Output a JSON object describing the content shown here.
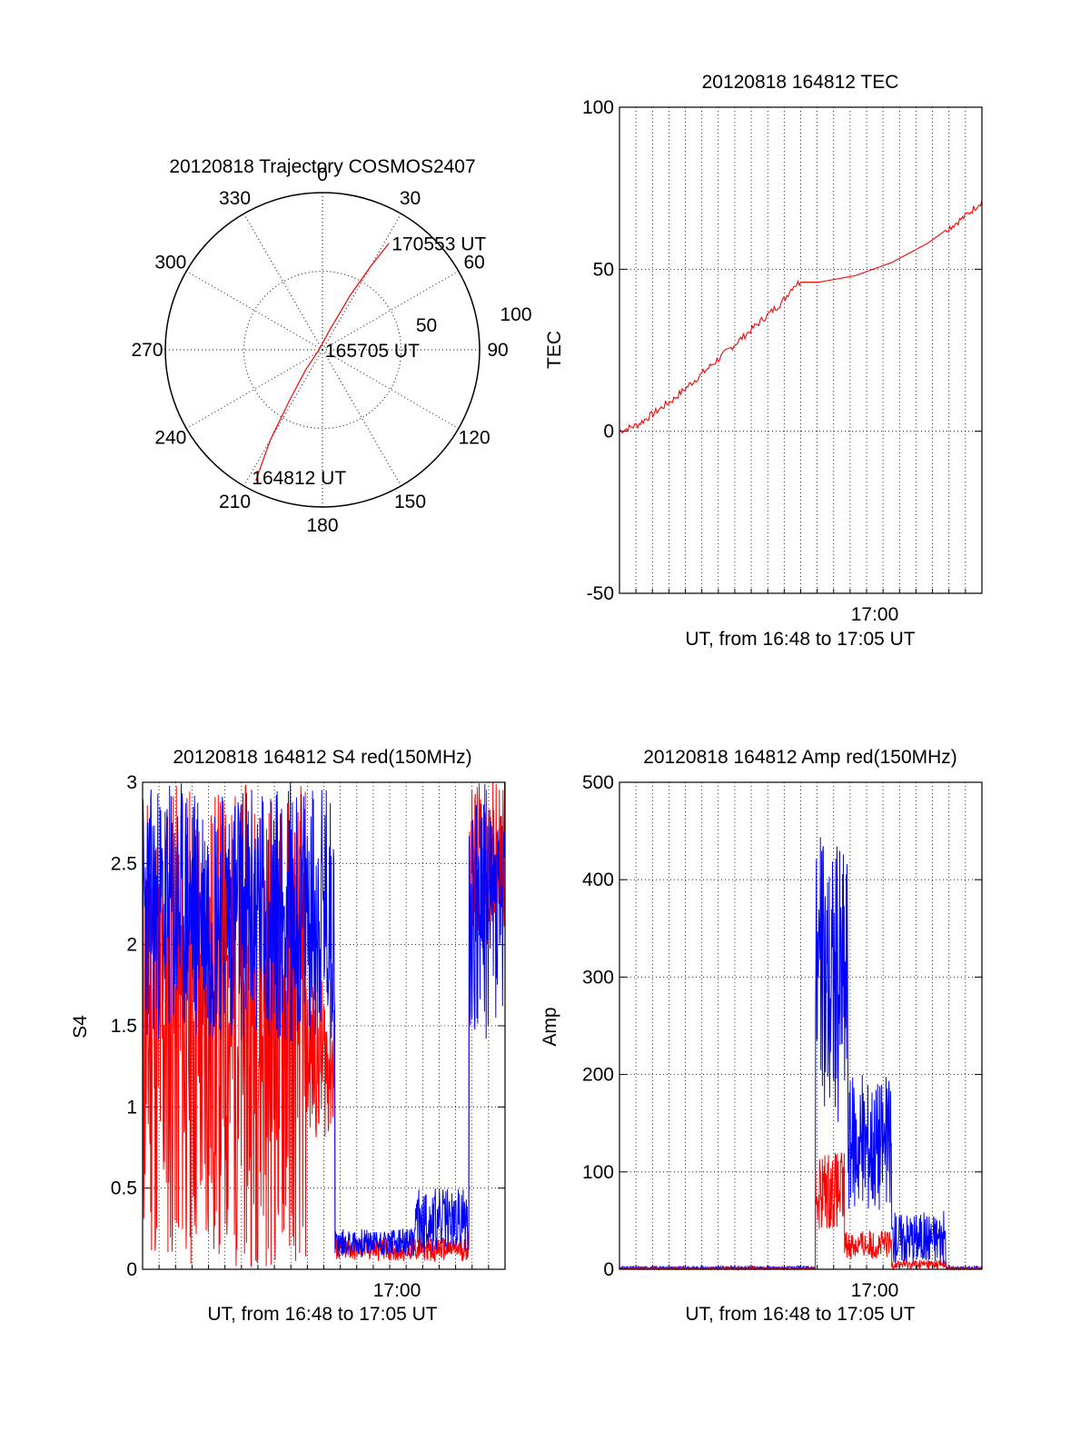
{
  "colors": {
    "red": "#ff0000",
    "blue": "#0000ff",
    "axis": "#000000",
    "grid": "#000000"
  },
  "chart_data": [
    {
      "id": "trajectory",
      "type": "polar",
      "title": "20120818 Trajectory COSMOS2407",
      "angle_labels": [
        "0",
        "30",
        "60",
        "90",
        "120",
        "150",
        "180",
        "210",
        "240",
        "270",
        "300",
        "330"
      ],
      "radial_labels": [
        "50",
        "100"
      ],
      "rmax": 100,
      "annotations": [
        {
          "text": "170553 UT",
          "az": 32,
          "el": 18
        },
        {
          "text": "165705 UT",
          "az": 210,
          "el": 90
        },
        {
          "text": "164812 UT",
          "az": 210,
          "el": 6
        }
      ],
      "track": [
        {
          "az": 207,
          "el": 6
        },
        {
          "az": 210,
          "el": 30
        },
        {
          "az": 213,
          "el": 55
        },
        {
          "az": 220,
          "el": 75
        },
        {
          "az": 270,
          "el": 88
        },
        {
          "az": 20,
          "el": 78
        },
        {
          "az": 27,
          "el": 55
        },
        {
          "az": 30,
          "el": 35
        },
        {
          "az": 32,
          "el": 18
        }
      ],
      "grid": true
    },
    {
      "id": "tec",
      "type": "line",
      "title": "20120818 164812 TEC",
      "ylabel": "TEC",
      "xlabel": "UT, from 16:48 to 17:05 UT",
      "ylim": [
        -50,
        100
      ],
      "yticks": [
        "-50",
        "0",
        "50",
        "100"
      ],
      "xtick_label": "17:00",
      "grid": true,
      "series": [
        {
          "color": "red",
          "x": [
            0,
            0.05,
            0.1,
            0.15,
            0.2,
            0.25,
            0.3,
            0.35,
            0.4,
            0.45,
            0.48,
            0.5,
            0.55,
            0.6,
            0.65,
            0.7,
            0.75,
            0.8,
            0.85,
            0.9,
            0.95,
            1.0
          ],
          "y": [
            0,
            2,
            6,
            10,
            15,
            20,
            25,
            30,
            35,
            40,
            45,
            46,
            46,
            47,
            48,
            50,
            52,
            55,
            58,
            62,
            66,
            71
          ]
        }
      ]
    },
    {
      "id": "s4",
      "type": "line",
      "title": "20120818 164812 S4 red(150MHz)",
      "ylabel": "S4",
      "xlabel": "UT, from 16:48 to 17:05 UT",
      "ylim": [
        0,
        3
      ],
      "yticks": [
        "0",
        "0.5",
        "1",
        "1.5",
        "2",
        "2.5",
        "3"
      ],
      "xtick_label": "17:00",
      "grid": true,
      "series": [
        {
          "color": "red",
          "name": "",
          "region": [
            {
              "from": 0.0,
              "to": 0.45,
              "min": 0.0,
              "max": 3.0
            },
            {
              "from": 0.45,
              "to": 0.53,
              "min": 0.8,
              "max": 1.8
            },
            {
              "from": 0.53,
              "to": 0.9,
              "min": 0.05,
              "max": 0.2
            },
            {
              "from": 0.9,
              "to": 1.0,
              "min": 2.0,
              "max": 3.0
            }
          ]
        },
        {
          "color": "blue",
          "name": "",
          "region": [
            {
              "from": 0.0,
              "to": 0.53,
              "min": 1.4,
              "max": 3.0
            },
            {
              "from": 0.53,
              "to": 0.75,
              "min": 0.08,
              "max": 0.25
            },
            {
              "from": 0.75,
              "to": 0.9,
              "min": 0.1,
              "max": 0.5
            },
            {
              "from": 0.9,
              "to": 1.0,
              "min": 1.4,
              "max": 3.0
            }
          ]
        }
      ]
    },
    {
      "id": "amp",
      "type": "line",
      "title": "20120818 164812 Amp red(150MHz)",
      "ylabel": "Amp",
      "xlabel": "UT, from 16:48 to 17:05 UT",
      "ylim": [
        0,
        500
      ],
      "yticks": [
        "0",
        "100",
        "200",
        "300",
        "400",
        "500"
      ],
      "xtick_label": "17:00",
      "grid": true,
      "series": [
        {
          "color": "red",
          "name": "",
          "region": [
            {
              "from": 0.0,
              "to": 0.54,
              "min": 0,
              "max": 2
            },
            {
              "from": 0.54,
              "to": 0.62,
              "min": 40,
              "max": 120
            },
            {
              "from": 0.62,
              "to": 0.75,
              "min": 10,
              "max": 40
            },
            {
              "from": 0.75,
              "to": 0.9,
              "min": 0,
              "max": 10
            },
            {
              "from": 0.9,
              "to": 1.0,
              "min": 0,
              "max": 2
            }
          ]
        },
        {
          "color": "blue",
          "name": "",
          "region": [
            {
              "from": 0.0,
              "to": 0.54,
              "min": 0,
              "max": 3
            },
            {
              "from": 0.54,
              "to": 0.63,
              "min": 150,
              "max": 445
            },
            {
              "from": 0.63,
              "to": 0.75,
              "min": 60,
              "max": 200
            },
            {
              "from": 0.75,
              "to": 0.9,
              "min": 5,
              "max": 60
            },
            {
              "from": 0.9,
              "to": 1.0,
              "min": 0,
              "max": 3
            }
          ]
        }
      ]
    }
  ]
}
